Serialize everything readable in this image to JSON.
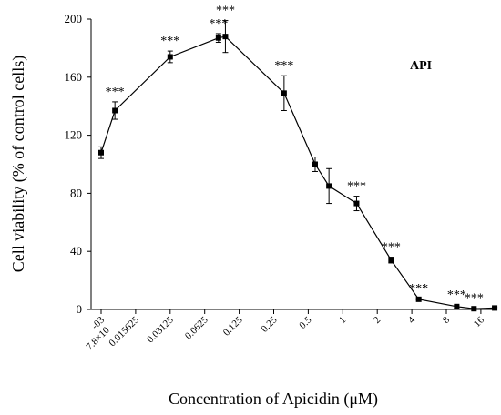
{
  "chart_data": {
    "type": "line",
    "title": "",
    "series_label": "API",
    "xlabel": "Concentration of Apicidin (μM)",
    "ylabel": "Cell viability (% of control cells)",
    "ylim": [
      0,
      200
    ],
    "yticks": [
      "0",
      "40",
      "80",
      "120",
      "160",
      "200"
    ],
    "xtick_labels": [
      {
        "line1": "-03",
        "line2": "7.8×10"
      },
      {
        "line1": "0.015625",
        "line2": ""
      },
      {
        "line1": "0.03125",
        "line2": ""
      },
      {
        "line1": "0.0625",
        "line2": ""
      },
      {
        "line1": "0.125",
        "line2": ""
      },
      {
        "line1": "0.25",
        "line2": ""
      },
      {
        "line1": "0.5",
        "line2": ""
      },
      {
        "line1": "1",
        "line2": ""
      },
      {
        "line1": "2",
        "line2": ""
      },
      {
        "line1": "4",
        "line2": ""
      },
      {
        "line1": "8",
        "line2": ""
      },
      {
        "line1": "16",
        "line2": ""
      }
    ],
    "x_log2_range": [
      -7.4,
      4.5
    ],
    "points": [
      {
        "log2x": -7.0,
        "y": 108,
        "err": 4,
        "sig": ""
      },
      {
        "log2x": -6.6,
        "y": 137,
        "err": 6,
        "sig": "***"
      },
      {
        "log2x": -5.0,
        "y": 174,
        "err": 4,
        "sig": "***"
      },
      {
        "log2x": -3.6,
        "y": 187,
        "err": 3,
        "sig": "***"
      },
      {
        "log2x": -3.4,
        "y": 188,
        "err": 11,
        "sig": "***"
      },
      {
        "log2x": -1.7,
        "y": 149,
        "err": 12,
        "sig": "***"
      },
      {
        "log2x": -0.8,
        "y": 100,
        "err": 5,
        "sig": ""
      },
      {
        "log2x": -0.4,
        "y": 85,
        "err": 12,
        "sig": ""
      },
      {
        "log2x": 0.4,
        "y": 73,
        "err": 5,
        "sig": "***"
      },
      {
        "log2x": 1.4,
        "y": 34,
        "err": 2,
        "sig": "***"
      },
      {
        "log2x": 2.2,
        "y": 7,
        "err": 0.5,
        "sig": "***"
      },
      {
        "log2x": 3.3,
        "y": 2,
        "err": 1,
        "sig": "***"
      },
      {
        "log2x": 3.8,
        "y": 0.5,
        "err": 0.5,
        "sig": "***"
      },
      {
        "log2x": 4.4,
        "y": 1,
        "err": 0.5,
        "sig": ""
      }
    ]
  }
}
